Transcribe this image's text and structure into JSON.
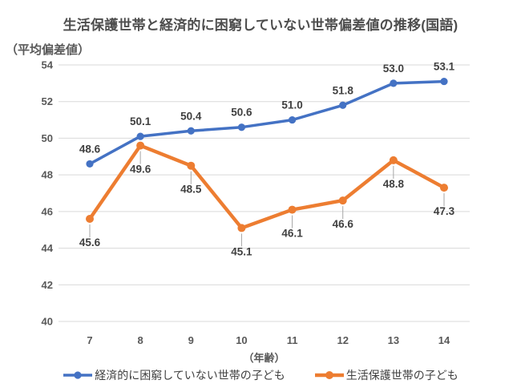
{
  "chart_data": {
    "type": "line",
    "title": "生活保護世帯と経済的に困窮していない世帯偏差値の推移(国語)",
    "ylabel": "（平均偏差値）",
    "xlabel": "（年齢）",
    "categories": [
      "7",
      "8",
      "9",
      "10",
      "11",
      "12",
      "13",
      "14"
    ],
    "ylim": [
      40,
      54
    ],
    "ytick_interval": 2,
    "yticks": [
      40,
      42,
      44,
      46,
      48,
      50,
      52,
      54
    ],
    "grid": true,
    "legend_position": "bottom",
    "series": [
      {
        "name": "経済的に困窮していない世帯の子ども",
        "color": "#4472C4",
        "values": [
          48.6,
          50.1,
          50.4,
          50.6,
          51.0,
          51.8,
          53.0,
          53.1
        ],
        "data_labels": "above",
        "line_width": 3.5,
        "marker_radius": 4.6
      },
      {
        "name": "生活保護世帯の子ども",
        "color": "#ED7D31",
        "values": [
          45.6,
          49.6,
          48.5,
          45.1,
          46.1,
          46.6,
          48.8,
          47.3
        ],
        "data_labels": "below_with_leader",
        "line_width": 4.4,
        "marker_radius": 5
      }
    ],
    "colors": {
      "gridline": "#D9D9D9",
      "tick_text": "#595959",
      "data_label_text": "#404040",
      "leader_line": "#A6A6A6",
      "legend_text": "#404040",
      "title_text": "#4d4d4d",
      "background": "#FFFFFF"
    }
  }
}
